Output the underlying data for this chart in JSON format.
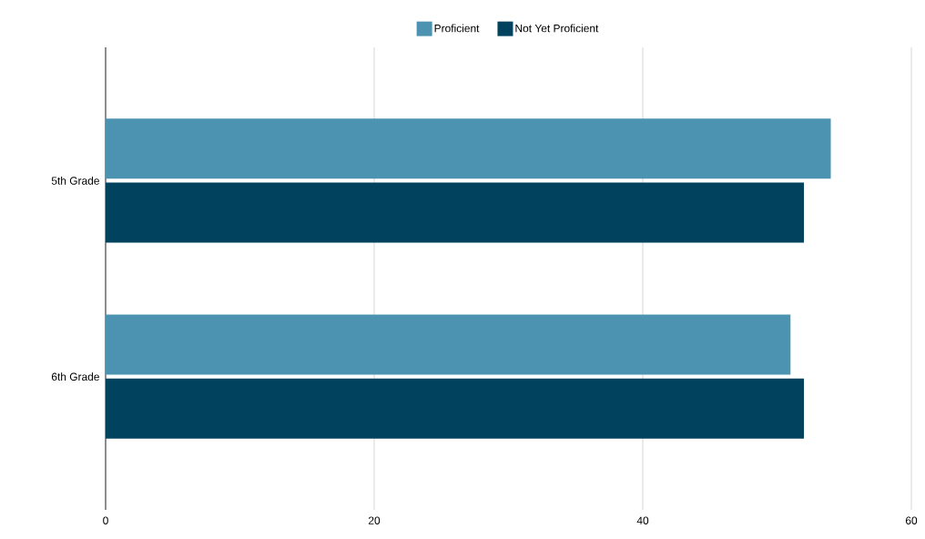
{
  "chart_data": {
    "type": "bar",
    "orientation": "horizontal",
    "categories": [
      "5th Grade",
      "6th Grade"
    ],
    "series": [
      {
        "name": "Proficient",
        "color": "#4b93b1",
        "values": [
          54,
          51
        ]
      },
      {
        "name": "Not Yet Proficient",
        "color": "#01425e",
        "values": [
          52,
          52
        ]
      }
    ],
    "xlim": [
      0,
      60
    ],
    "xticks": [
      0,
      20,
      40,
      60
    ],
    "grid": "x",
    "legend": "top"
  }
}
